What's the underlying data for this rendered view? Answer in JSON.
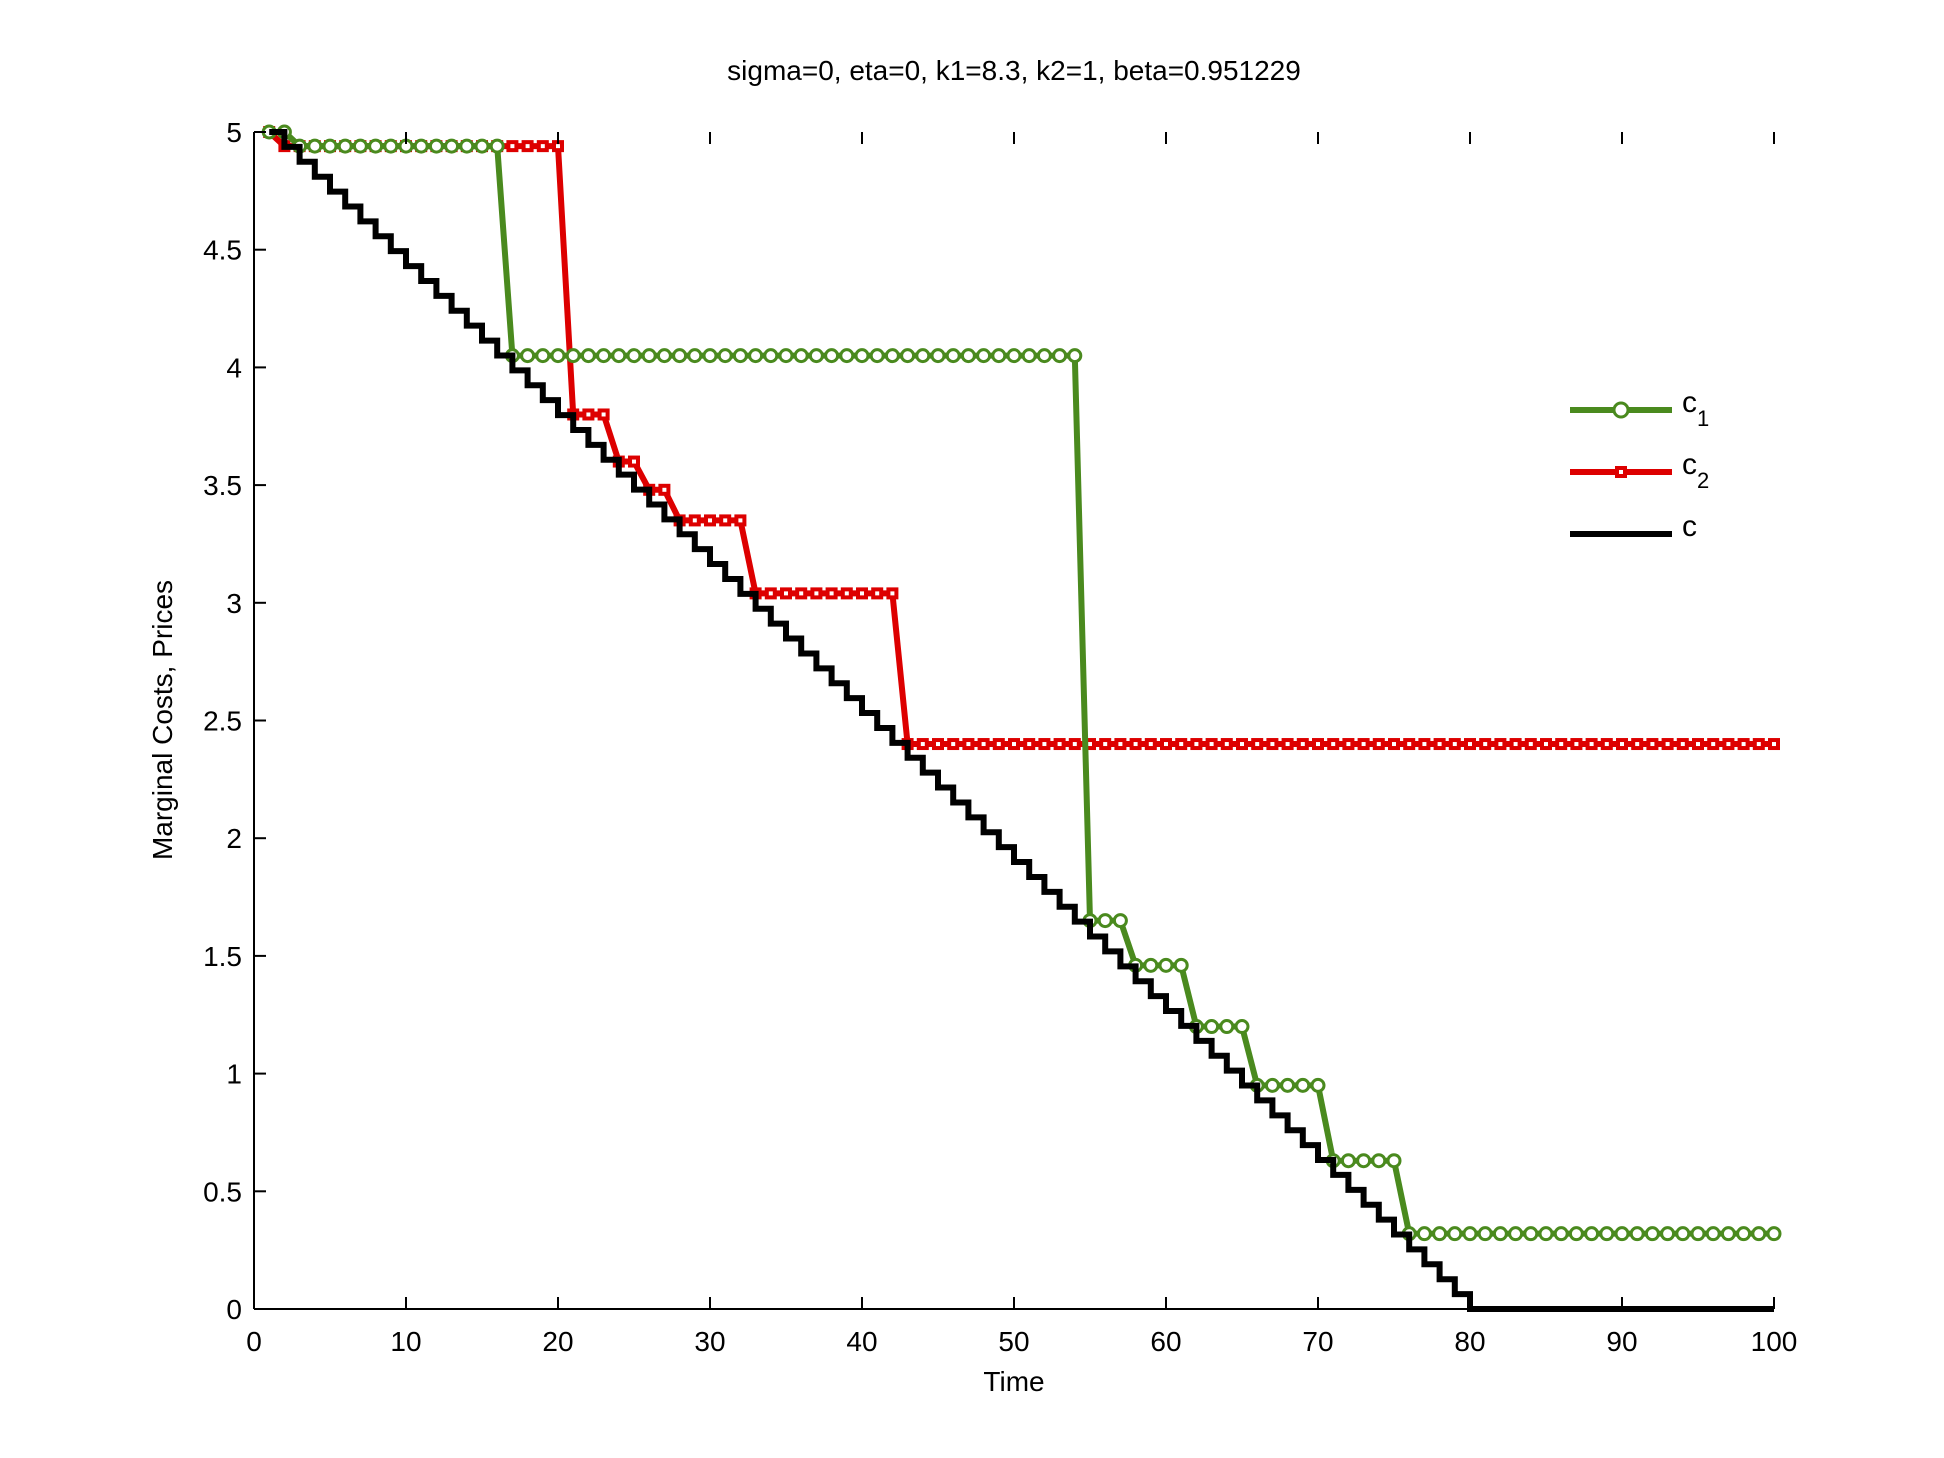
{
  "chart_data": {
    "type": "line",
    "title": "sigma=0, eta=0, k1=8.3, k2=1, beta=0.951229",
    "xlabel": "Time",
    "ylabel": "Marginal Costs, Prices",
    "xlim": [
      0,
      100
    ],
    "ylim": [
      0,
      5
    ],
    "xticks": [
      0,
      10,
      20,
      30,
      40,
      50,
      60,
      70,
      80,
      90,
      100
    ],
    "yticks": [
      0,
      0.5,
      1,
      1.5,
      2,
      2.5,
      3,
      3.5,
      4,
      4.5,
      5
    ],
    "xtick_labels": [
      "0",
      "10",
      "20",
      "30",
      "40",
      "50",
      "60",
      "70",
      "80",
      "90",
      "100"
    ],
    "ytick_labels": [
      "0",
      "0.5",
      "1",
      "1.5",
      "2",
      "2.5",
      "3",
      "3.5",
      "4",
      "4.5",
      "5"
    ],
    "grid": false,
    "legend_position": "right",
    "series": [
      {
        "name": "c",
        "name_base": "c",
        "name_sub": "1",
        "color": "#4a8a1e",
        "marker": "circle",
        "x_start": 1,
        "x_step": 1,
        "values": [
          5,
          5,
          4.94,
          4.94,
          4.94,
          4.94,
          4.94,
          4.94,
          4.94,
          4.94,
          4.94,
          4.94,
          4.94,
          4.94,
          4.94,
          4.94,
          4.05,
          4.05,
          4.05,
          4.05,
          4.05,
          4.05,
          4.05,
          4.05,
          4.05,
          4.05,
          4.05,
          4.05,
          4.05,
          4.05,
          4.05,
          4.05,
          4.05,
          4.05,
          4.05,
          4.05,
          4.05,
          4.05,
          4.05,
          4.05,
          4.05,
          4.05,
          4.05,
          4.05,
          4.05,
          4.05,
          4.05,
          4.05,
          4.05,
          4.05,
          4.05,
          4.05,
          4.05,
          4.05,
          1.65,
          1.65,
          1.65,
          1.46,
          1.46,
          1.46,
          1.46,
          1.2,
          1.2,
          1.2,
          1.2,
          0.95,
          0.95,
          0.95,
          0.95,
          0.95,
          0.63,
          0.63,
          0.63,
          0.63,
          0.63,
          0.32,
          0.32,
          0.32,
          0.32,
          0.32,
          0.32,
          0.32,
          0.32,
          0.32,
          0.32,
          0.32,
          0.32,
          0.32,
          0.32,
          0.32,
          0.32,
          0.32,
          0.32,
          0.32,
          0.32,
          0.32,
          0.32,
          0.32,
          0.32,
          0.32
        ]
      },
      {
        "name": "c",
        "name_base": "c",
        "name_sub": "2",
        "color": "#dd0000",
        "marker": "square",
        "x_start": 1,
        "x_step": 1,
        "values": [
          5,
          4.94,
          4.94,
          4.94,
          4.94,
          4.94,
          4.94,
          4.94,
          4.94,
          4.94,
          4.94,
          4.94,
          4.94,
          4.94,
          4.94,
          4.94,
          4.94,
          4.94,
          4.94,
          4.94,
          3.8,
          3.8,
          3.8,
          3.6,
          3.6,
          3.48,
          3.48,
          3.35,
          3.35,
          3.35,
          3.35,
          3.35,
          3.04,
          3.04,
          3.04,
          3.04,
          3.04,
          3.04,
          3.04,
          3.04,
          3.04,
          3.04,
          2.4,
          2.4,
          2.4,
          2.4,
          2.4,
          2.4,
          2.4,
          2.4,
          2.4,
          2.4,
          2.4,
          2.4,
          2.4,
          2.4,
          2.4,
          2.4,
          2.4,
          2.4,
          2.4,
          2.4,
          2.4,
          2.4,
          2.4,
          2.4,
          2.4,
          2.4,
          2.4,
          2.4,
          2.4,
          2.4,
          2.4,
          2.4,
          2.4,
          2.4,
          2.4,
          2.4,
          2.4,
          2.4,
          2.4,
          2.4,
          2.4,
          2.4,
          2.4,
          2.4,
          2.4,
          2.4,
          2.4,
          2.4,
          2.4,
          2.4,
          2.4,
          2.4,
          2.4,
          2.4,
          2.4,
          2.4,
          2.4,
          2.4
        ]
      },
      {
        "name": "c",
        "name_base": "c",
        "name_sub": "",
        "color": "#000000",
        "marker": "none",
        "step": true,
        "x_start": 1,
        "x_step": 1,
        "values": [
          5,
          4.9367,
          4.8734,
          4.8101,
          4.7468,
          4.6835,
          4.6203,
          4.557,
          4.4937,
          4.4304,
          4.3671,
          4.3038,
          4.2405,
          4.1772,
          4.1139,
          4.0506,
          3.9873,
          3.9241,
          3.8608,
          3.7975,
          3.7342,
          3.6709,
          3.6076,
          3.5443,
          3.481,
          3.4177,
          3.3544,
          3.2911,
          3.2278,
          3.1646,
          3.1013,
          3.038,
          2.9747,
          2.9114,
          2.8481,
          2.7848,
          2.7215,
          2.6582,
          2.5949,
          2.5316,
          2.4684,
          2.4051,
          2.3418,
          2.2785,
          2.2152,
          2.1519,
          2.0886,
          2.0253,
          1.962,
          1.8987,
          1.8354,
          1.7722,
          1.7089,
          1.6456,
          1.5823,
          1.519,
          1.4557,
          1.3924,
          1.3291,
          1.2658,
          1.2025,
          1.1392,
          1.0759,
          1.0127,
          0.9494,
          0.8861,
          0.8228,
          0.7595,
          0.6962,
          0.6329,
          0.5696,
          0.5063,
          0.443,
          0.3797,
          0.3165,
          0.2532,
          0.1899,
          0.1266,
          0.0633,
          0,
          0,
          0,
          0,
          0,
          0,
          0,
          0,
          0,
          0,
          0,
          0,
          0,
          0,
          0,
          0,
          0,
          0,
          0,
          0,
          0
        ]
      }
    ]
  }
}
